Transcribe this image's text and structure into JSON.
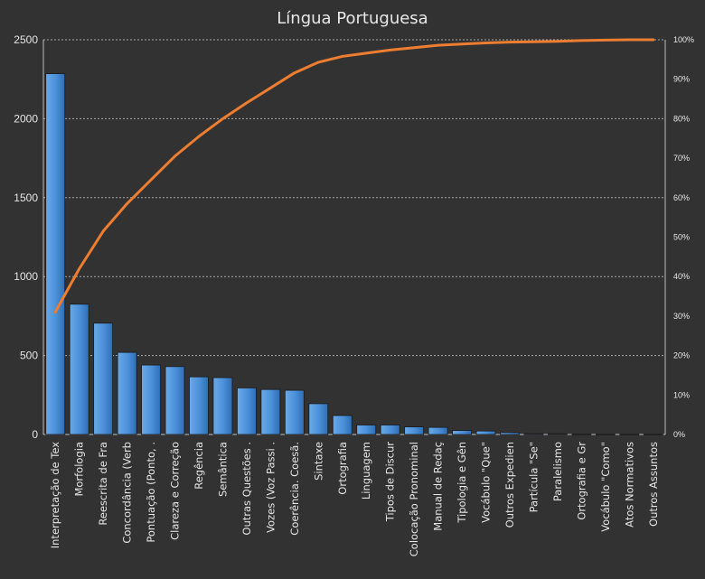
{
  "chart_data": {
    "type": "bar",
    "title": "Língua Portuguesa",
    "categories": [
      "Interpretação de Tex",
      "Morfologia",
      "Reescrita de Fra",
      "Concordância (Verb",
      "Pontuação (Ponto, .",
      "Clareza e Correção",
      "Regência",
      "Semântica",
      "Outras Questões .",
      "Vozes (Voz Passi .",
      "Coerência. Coesã.",
      "Sintaxe",
      "Ortografia",
      "Linguagem",
      "Tipos de Discur",
      "Colocação Pronominal",
      "Manual de Redaç",
      "Tipologia e Gên",
      "Vocábulo \"Que\"",
      "Outros Expedien",
      "Partícula \"Se\"",
      "Paralelismo",
      "Ortografia e Gr",
      "Vocábulo \"Como\"",
      "Atos Normativos",
      "Outros Assuntos"
    ],
    "series": [
      {
        "type": "bar",
        "axis": "left",
        "color": "#4a8fd8",
        "values": [
          2285,
          825,
          705,
          520,
          440,
          430,
          365,
          360,
          295,
          285,
          280,
          195,
          120,
          60,
          60,
          48,
          45,
          25,
          22,
          12,
          5,
          4,
          2,
          1,
          1,
          1
        ]
      },
      {
        "type": "line",
        "axis": "right",
        "color": "#ed7d31",
        "values": [
          0.31,
          0.42,
          0.515,
          0.585,
          0.645,
          0.705,
          0.755,
          0.8,
          0.84,
          0.878,
          0.916,
          0.943,
          0.958,
          0.966,
          0.974,
          0.98,
          0.986,
          0.989,
          0.992,
          0.994,
          0.995,
          0.996,
          0.998,
          0.999,
          1.0,
          1.0
        ]
      }
    ],
    "y_left": {
      "ylim": [
        0,
        2500
      ],
      "ticks": [
        "0",
        "500",
        "1000",
        "1500",
        "2000",
        "2500"
      ]
    },
    "y_right": {
      "ylim": [
        0,
        1
      ],
      "ticks": [
        "0%",
        "10%",
        "20%",
        "30%",
        "40%",
        "50%",
        "60%",
        "70%",
        "80%",
        "90%",
        "100%"
      ]
    },
    "grid": true,
    "legend": "none"
  }
}
